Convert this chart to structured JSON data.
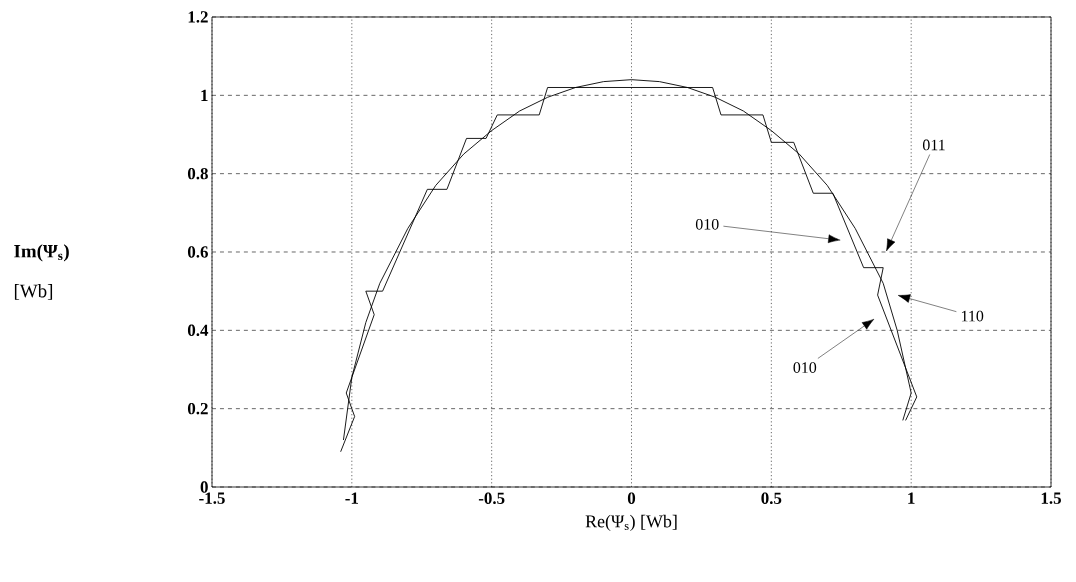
{
  "chart_data": {
    "type": "line",
    "xlabel": "Re(Ψ$_{s}$)  [Wb]",
    "ylabel": "**Im(Ψ$_{s}$)** [Wb]",
    "series": [
      {
        "color": "#000000",
        "x": [
          -1.03,
          -1.0,
          -0.95,
          -0.9,
          -0.8,
          -0.7,
          -0.6,
          -0.5,
          -0.4,
          -0.3,
          -0.2,
          -0.1,
          0,
          0.1,
          0.2,
          0.3,
          0.4,
          0.5,
          0.6,
          0.7,
          0.8,
          0.9,
          0.95,
          1.0,
          0.97
        ],
        "values": [
          0.12,
          0.28,
          0.42,
          0.52,
          0.66,
          0.77,
          0.85,
          0.91,
          0.96,
          0.995,
          1.02,
          1.035,
          1.04,
          1.035,
          1.02,
          0.995,
          0.96,
          0.91,
          0.85,
          0.77,
          0.66,
          0.52,
          0.4,
          0.24,
          0.17
        ]
      },
      {
        "color": "#000000",
        "x": [
          -1.04,
          -0.99,
          -1.02,
          -0.92,
          -0.95,
          -0.89,
          -0.73,
          -0.66,
          -0.59,
          -0.52,
          -0.48,
          -0.33,
          -0.3,
          0.29,
          0.32,
          0.47,
          0.5,
          0.58,
          0.65,
          0.72,
          0.83,
          0.9,
          0.88,
          1.02,
          0.98
        ],
        "values": [
          0.09,
          0.18,
          0.24,
          0.44,
          0.5,
          0.5,
          0.76,
          0.76,
          0.89,
          0.89,
          0.95,
          0.95,
          1.02,
          1.02,
          0.95,
          0.95,
          0.88,
          0.88,
          0.75,
          0.75,
          0.56,
          0.56,
          0.49,
          0.23,
          0.17
        ]
      }
    ],
    "xlim": [
      -1.5,
      1.5
    ],
    "ylim": [
      0,
      1.2
    ],
    "xticks": [
      -1.5,
      -1,
      -0.5,
      0,
      0.5,
      1,
      1.5
    ],
    "yticks": [
      0,
      0.2,
      0.4,
      0.6,
      0.8,
      1,
      1.2
    ],
    "grid": true,
    "marker": "none",
    "line_style": "solid",
    "annotations": [
      "010",
      "011",
      "110",
      "010"
    ]
  }
}
